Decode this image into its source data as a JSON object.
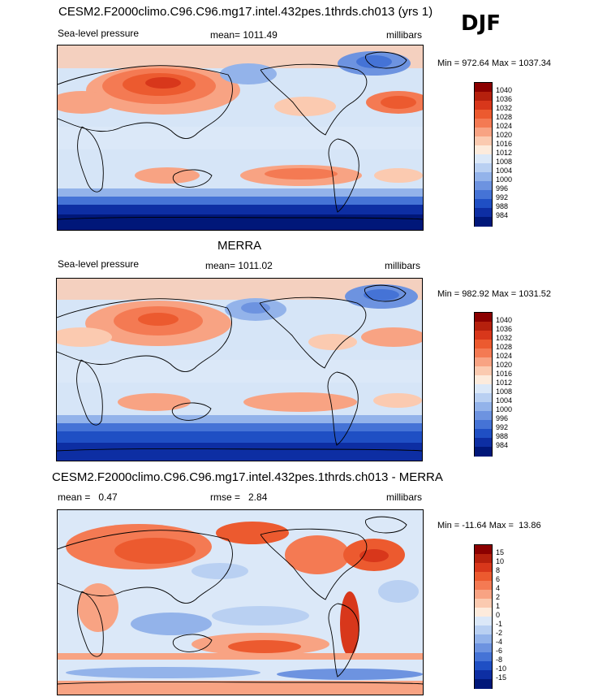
{
  "season": "DJF",
  "panels": [
    {
      "id": "model",
      "title": "CESM2.F2000climo.C96.C96.mg17.intel.432pes.1thrds.ch013 (yrs 1)",
      "left_label": "Sea-level pressure",
      "center_label": "mean= 1011.49",
      "right_label": "millibars",
      "minmax": "Min = 972.64 Max = 1037.34"
    },
    {
      "id": "obs",
      "title": "MERRA",
      "left_label": "Sea-level pressure",
      "center_label": "mean= 1011.02",
      "right_label": "millibars",
      "minmax": "Min = 982.92 Max = 1031.52"
    },
    {
      "id": "diff",
      "title": "CESM2.F2000climo.C96.C96.mg17.intel.432pes.1thrds.ch013 - MERRA",
      "left_label": "mean =   0.47",
      "center_label": "rmse =   2.84",
      "right_label": "millibars",
      "minmax": "Min = -11.64 Max =  13.86"
    }
  ],
  "chart_data": [
    {
      "type": "heatmap",
      "title": "CESM2.F2000climo.C96.C96.mg17.intel.432pes.1thrds.ch013 (yrs 1)",
      "variable": "Sea-level pressure",
      "units": "millibars",
      "mean": 1011.49,
      "min": 972.64,
      "max": 1037.34,
      "colorbar_levels": [
        "1040",
        "1036",
        "1032",
        "1028",
        "1024",
        "1020",
        "1016",
        "1012",
        "1008",
        "1004",
        "1000",
        "996",
        "992",
        "988",
        "984"
      ],
      "colorbar_colors": [
        "#8b0000",
        "#b5200d",
        "#d8371b",
        "#ec5a2f",
        "#f47a53",
        "#f8a383",
        "#fbcab0",
        "#fdebdc",
        "#dbe8f8",
        "#b9d0f2",
        "#93b3ea",
        "#6d93e0",
        "#4573d6",
        "#1f4fc4",
        "#0d2ea3",
        "#001779"
      ]
    },
    {
      "type": "heatmap",
      "title": "MERRA",
      "variable": "Sea-level pressure",
      "units": "millibars",
      "mean": 1011.02,
      "min": 982.92,
      "max": 1031.52,
      "colorbar_levels": [
        "1040",
        "1036",
        "1032",
        "1028",
        "1024",
        "1020",
        "1016",
        "1012",
        "1008",
        "1004",
        "1000",
        "996",
        "992",
        "988",
        "984"
      ],
      "colorbar_colors": [
        "#8b0000",
        "#b5200d",
        "#d8371b",
        "#ec5a2f",
        "#f47a53",
        "#f8a383",
        "#fbcab0",
        "#fdebdc",
        "#dbe8f8",
        "#b9d0f2",
        "#93b3ea",
        "#6d93e0",
        "#4573d6",
        "#1f4fc4",
        "#0d2ea3",
        "#001779"
      ]
    },
    {
      "type": "heatmap",
      "title": "CESM2.F2000climo.C96.C96.mg17.intel.432pes.1thrds.ch013 - MERRA",
      "units": "millibars",
      "mean": 0.47,
      "rmse": 2.84,
      "min": -11.64,
      "max": 13.86,
      "colorbar_levels": [
        "15",
        "10",
        "8",
        "6",
        "4",
        "2",
        "1",
        "0",
        "-1",
        "-2",
        "-4",
        "-6",
        "-8",
        "-10",
        "-15"
      ],
      "colorbar_colors": [
        "#8b0000",
        "#b5200d",
        "#d8371b",
        "#ec5a2f",
        "#f47a53",
        "#f8a383",
        "#fbcab0",
        "#fdebdc",
        "#dbe8f8",
        "#b9d0f2",
        "#93b3ea",
        "#6d93e0",
        "#4573d6",
        "#1f4fc4",
        "#0d2ea3",
        "#001779"
      ]
    }
  ]
}
